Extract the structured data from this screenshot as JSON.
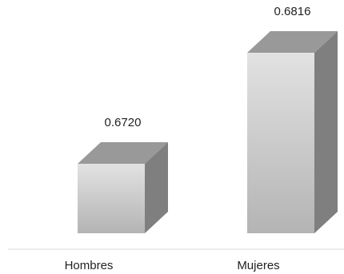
{
  "chart_data": {
    "type": "bar",
    "style": "3d-column",
    "categories": [
      "Hombres",
      "Mujeres"
    ],
    "values": [
      0.672,
      0.6816
    ],
    "data_labels": [
      "0.6720",
      "0.6816"
    ],
    "title": "",
    "xlabel": "",
    "ylabel": "",
    "grid": false,
    "legend": "none",
    "colors": {
      "bar_front_top": "#e2e2e2",
      "bar_front_bottom": "#b4b4b4",
      "bar_side": "#7f7f7f",
      "bar_top": "#999999",
      "axis_line": "#d9d9d9"
    }
  }
}
